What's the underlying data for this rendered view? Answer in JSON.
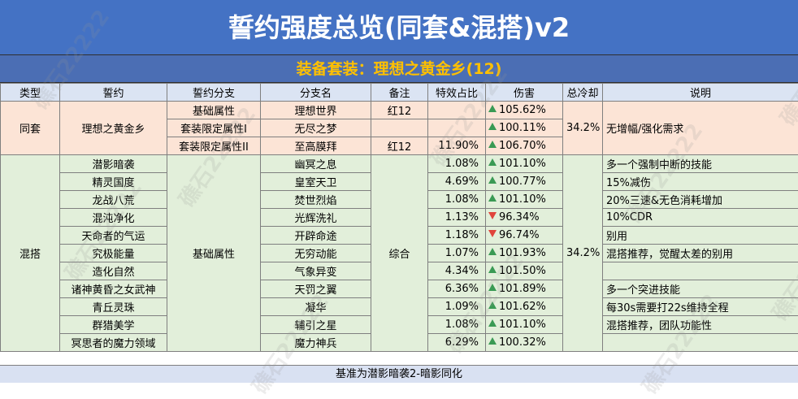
{
  "title": "誓约强度总览(同套&混搭)v2",
  "subtitle": "装备套装：理想之黄金乡(12)",
  "headers": [
    "类型",
    "誓约",
    "誓约分支",
    "分支名",
    "备注",
    "特效占比",
    "伤害",
    "总冷却",
    "说明"
  ],
  "same_group": {
    "type": "同套",
    "pact": "理想之黄金乡",
    "cooldown": "34.2%",
    "note": "无增幅/强化需求",
    "rows": [
      {
        "branch": "基础属性",
        "name": "理想世界",
        "remark": "红12",
        "ratio": "",
        "damage": "105.62%",
        "trend": "up"
      },
      {
        "branch": "套装限定属性I",
        "name": "无尽之梦",
        "remark": "",
        "ratio": "",
        "damage": "100.11%",
        "trend": "up"
      },
      {
        "branch": "套装限定属性II",
        "name": "至高膜拜",
        "remark": "红12",
        "ratio": "11.90%",
        "damage": "106.70%",
        "trend": "up"
      }
    ]
  },
  "mix_group": {
    "type": "混搭",
    "branch": "基础属性",
    "remark": "综合",
    "cooldown": "34.2%",
    "rows": [
      {
        "pact": "潜影暗袭",
        "name": "幽冥之息",
        "ratio": "1.08%",
        "damage": "101.10%",
        "trend": "up",
        "note": "多一个强制中断的技能"
      },
      {
        "pact": "精灵国度",
        "name": "皇室天卫",
        "ratio": "4.69%",
        "damage": "100.77%",
        "trend": "up",
        "note": "15%减伤"
      },
      {
        "pact": "龙战八荒",
        "name": "焚世烈焰",
        "ratio": "1.08%",
        "damage": "101.10%",
        "trend": "up",
        "note": "20%三速&无色消耗增加"
      },
      {
        "pact": "混沌净化",
        "name": "光辉洗礼",
        "ratio": "1.13%",
        "damage": "96.34%",
        "trend": "down",
        "note": "10%CDR"
      },
      {
        "pact": "天命者的气运",
        "name": "开辟命途",
        "ratio": "1.18%",
        "damage": "96.74%",
        "trend": "down",
        "note": "别用"
      },
      {
        "pact": "究极能量",
        "name": "无穷动能",
        "ratio": "1.07%",
        "damage": "101.93%",
        "trend": "up",
        "note": "混搭推荐，觉醒太差的别用"
      },
      {
        "pact": "造化自然",
        "name": "气象异变",
        "ratio": "4.34%",
        "damage": "101.50%",
        "trend": "up",
        "note": ""
      },
      {
        "pact": "诸神黄昏之女武神",
        "name": "天罚之翼",
        "ratio": "6.36%",
        "damage": "101.89%",
        "trend": "up",
        "note": "多一个突进技能"
      },
      {
        "pact": "青丘灵珠",
        "name": "凝华",
        "ratio": "1.09%",
        "damage": "101.62%",
        "trend": "up",
        "note": "每30s需要打22s维持全程"
      },
      {
        "pact": "群猎美学",
        "name": "辅引之星",
        "ratio": "1.08%",
        "damage": "101.10%",
        "trend": "up",
        "note": "混搭推荐，团队功能性"
      },
      {
        "pact": "冥思者的魔力领域",
        "name": "魔力神兵",
        "ratio": "6.29%",
        "damage": "100.32%",
        "trend": "up",
        "note": ""
      }
    ]
  },
  "footer": "基准为潜影暗袭2-暗影同化",
  "watermark": "礁石22222",
  "colors": {
    "title_bg": "#4472c4",
    "subtitle_text": "#ffc000",
    "same_bg": "#fce4d6",
    "mix_bg": "#e2efda",
    "up": "#3a9a54",
    "down": "#e0443b"
  }
}
